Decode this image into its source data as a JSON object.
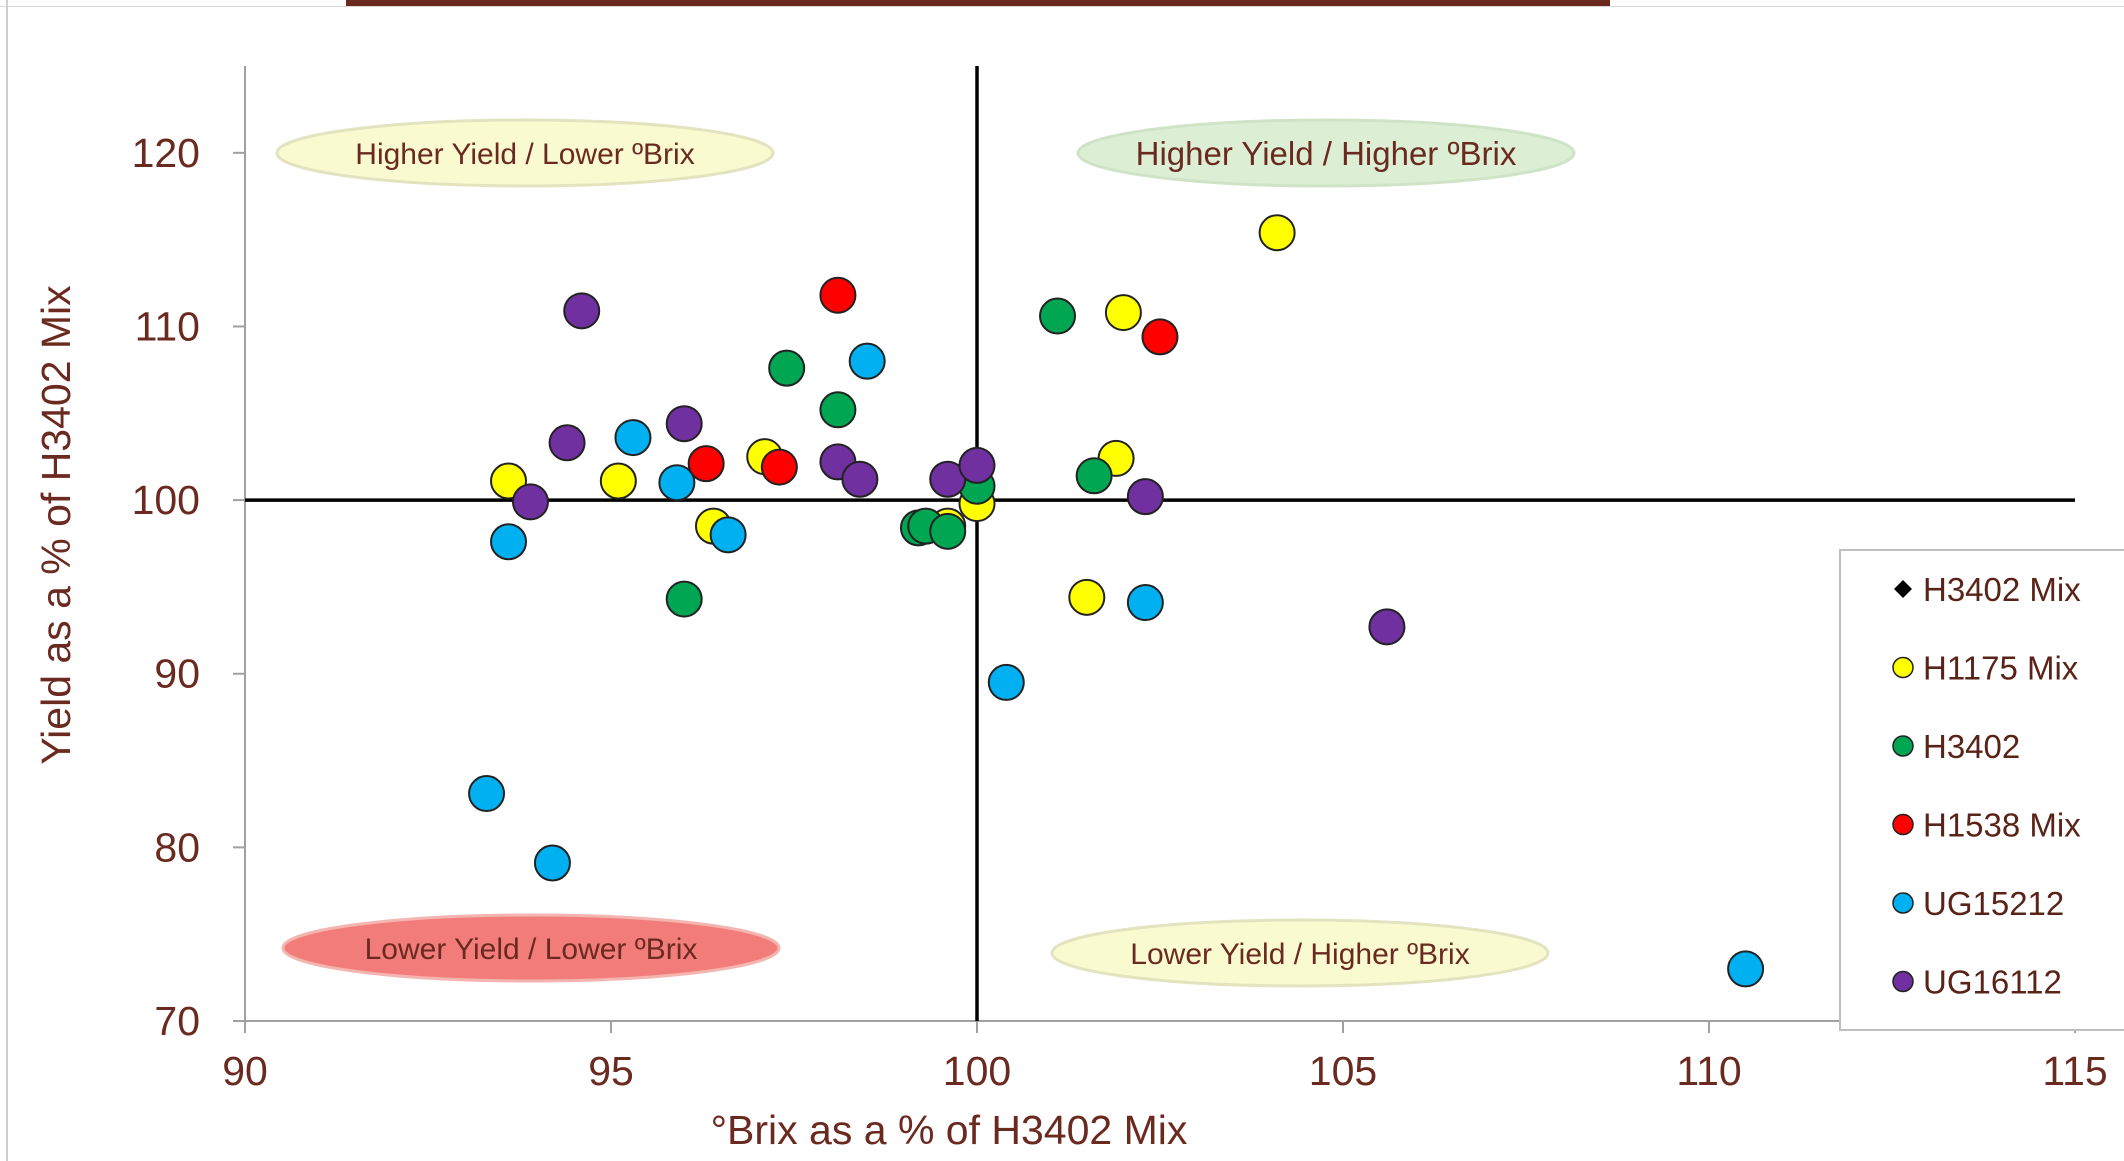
{
  "chart_data": {
    "type": "scatter",
    "title": "",
    "xlabel": "°Brix as a % of H3402 Mix",
    "ylabel": "Yield as a % of H3402 Mix",
    "xlim": [
      90,
      115
    ],
    "ylim": [
      70,
      125
    ],
    "xticks": [
      90,
      95,
      100,
      105,
      110,
      115
    ],
    "yticks": [
      70,
      80,
      90,
      100,
      110,
      120
    ],
    "reference_lines": {
      "x": 100,
      "y": 100
    },
    "legend_position": "right",
    "quadrant_labels": [
      {
        "text": "Higher Yield / Lower ºBrix",
        "color": "#fafad0"
      },
      {
        "text": "Higher Yield / Higher ºBrix",
        "color": "#dcefd5"
      },
      {
        "text": "Lower Yield / Lower ºBrix",
        "color": "#f27c7a"
      },
      {
        "text": "Lower Yield / Higher ºBrix",
        "color": "#fafad0"
      }
    ],
    "series": [
      {
        "name": "H3402 Mix",
        "marker": "diamond",
        "color": "#000000",
        "points": [
          [
            100,
            100
          ]
        ]
      },
      {
        "name": "H1175 Mix",
        "marker": "circle",
        "color": "#ffff00",
        "points": [
          [
            93.6,
            101.1
          ],
          [
            95.1,
            101.1
          ],
          [
            96.4,
            98.5
          ],
          [
            97.1,
            102.5
          ],
          [
            99.6,
            98.5
          ],
          [
            100.0,
            99.8
          ],
          [
            101.5,
            94.4
          ],
          [
            101.9,
            102.4
          ],
          [
            102.0,
            110.8
          ],
          [
            104.1,
            115.4
          ]
        ]
      },
      {
        "name": "H3402",
        "marker": "circle",
        "color": "#00a651",
        "points": [
          [
            96.0,
            94.3
          ],
          [
            97.4,
            107.6
          ],
          [
            98.1,
            105.2
          ],
          [
            99.2,
            98.4
          ],
          [
            99.3,
            98.5
          ],
          [
            99.6,
            98.2
          ],
          [
            100.0,
            100.8
          ],
          [
            101.1,
            110.6
          ],
          [
            101.6,
            101.4
          ]
        ]
      },
      {
        "name": "H1538 Mix",
        "marker": "circle",
        "color": "#ff0000",
        "points": [
          [
            96.3,
            102.1
          ],
          [
            97.3,
            101.9
          ],
          [
            98.1,
            111.8
          ],
          [
            102.5,
            109.4
          ]
        ]
      },
      {
        "name": "UG15212",
        "marker": "circle",
        "color": "#00b0f0",
        "points": [
          [
            93.3,
            83.1
          ],
          [
            93.6,
            97.6
          ],
          [
            94.2,
            79.1
          ],
          [
            95.3,
            103.6
          ],
          [
            95.9,
            101.0
          ],
          [
            96.6,
            98.0
          ],
          [
            98.5,
            108.0
          ],
          [
            100.4,
            89.5
          ],
          [
            102.3,
            94.1
          ],
          [
            110.5,
            73.0
          ]
        ]
      },
      {
        "name": "UG16112",
        "marker": "circle",
        "color": "#7030a0",
        "points": [
          [
            93.9,
            99.9
          ],
          [
            94.4,
            103.3
          ],
          [
            94.6,
            110.9
          ],
          [
            96.0,
            104.4
          ],
          [
            98.1,
            102.2
          ],
          [
            98.4,
            101.2
          ],
          [
            99.6,
            101.2
          ],
          [
            100.0,
            102.0
          ],
          [
            102.3,
            100.2
          ],
          [
            105.6,
            92.7
          ]
        ]
      }
    ]
  }
}
